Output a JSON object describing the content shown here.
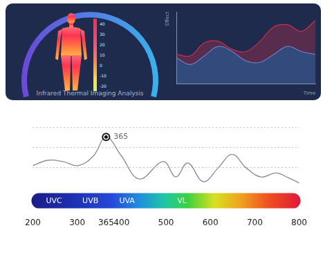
{
  "chart_data": [
    {
      "type": "line",
      "categories": [
        null,
        null,
        null,
        null,
        null,
        null,
        null,
        null,
        null,
        null,
        null
      ],
      "series": [
        {
          "color": "#c8304c",
          "values": [
            41,
            39,
            57,
            59,
            48,
            45,
            59,
            79,
            82,
            73,
            88
          ]
        },
        {
          "color": "#5b8cdc",
          "values": [
            36,
            27,
            39,
            52,
            45,
            32,
            30,
            41,
            52,
            45,
            41
          ]
        }
      ],
      "x_label": "Time",
      "y_label": "Effect",
      "ylim": [
        0,
        100
      ],
      "grid": false,
      "tick_labels": false
    },
    {
      "type": "line",
      "x": [
        200,
        234,
        268,
        303,
        337,
        365,
        399,
        440,
        494,
        522,
        549,
        584,
        618,
        649,
        680,
        714,
        748,
        775,
        800
      ],
      "values": [
        33,
        41,
        39,
        33,
        48,
        76,
        48,
        13,
        39,
        16,
        37,
        9,
        30,
        50,
        30,
        16,
        22,
        15,
        7
      ],
      "color": "#8a8a8a",
      "xlim": [
        200,
        800
      ],
      "xticks": [
        200,
        300,
        365,
        400,
        500,
        600,
        700,
        800
      ],
      "ylim": [
        0,
        100
      ],
      "yticks": [
        30,
        60,
        90
      ],
      "grid": true,
      "tick_labels": "x",
      "annotations": [
        {
          "x": 365,
          "y": 76,
          "label": "365"
        }
      ],
      "band_labels": [
        "UVC",
        "UVB",
        "UVA",
        "VL"
      ]
    }
  ],
  "thermal_panel": {
    "title": "Infrared Thermal Imaging Analysis",
    "color_scale": {
      "range": [
        -25,
        45
      ],
      "ticks": [
        40,
        30,
        20,
        10,
        0,
        -10,
        -20
      ]
    }
  }
}
